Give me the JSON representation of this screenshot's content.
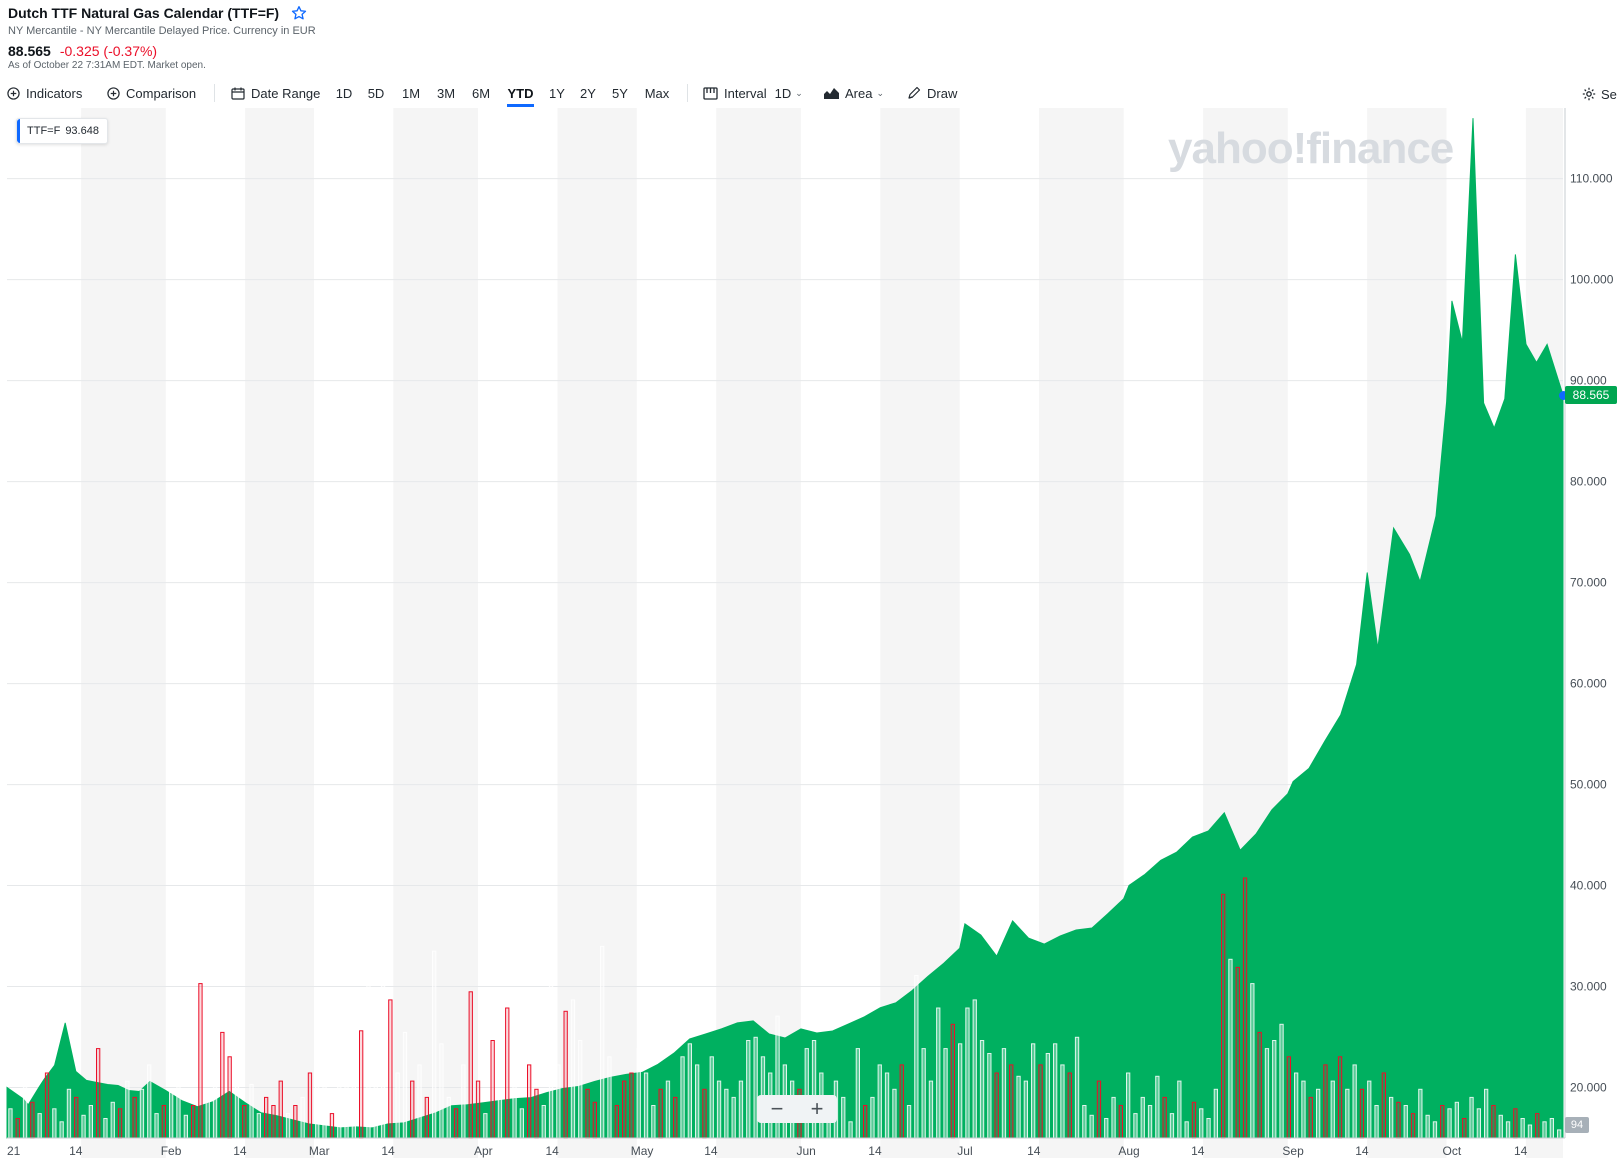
{
  "header": {
    "title": "Dutch TTF Natural Gas Calendar (TTF=F)",
    "subtitle": "NY Mercantile - NY Mercantile Delayed Price. Currency in EUR",
    "price": "88.565",
    "change": "-0.325 (-0.37%)",
    "as_of": "As of October 22 7:31AM EDT. Market open."
  },
  "toolbar": {
    "indicators": "Indicators",
    "comparison": "Comparison",
    "date_range": "Date Range",
    "ranges": [
      "1D",
      "5D",
      "1M",
      "3M",
      "6M",
      "YTD",
      "1Y",
      "2Y",
      "5Y",
      "Max"
    ],
    "active_range": "YTD",
    "interval_label": "Interval",
    "interval_value": "1D",
    "chart_type": "Area",
    "draw": "Draw",
    "settings": "Settings"
  },
  "legend": {
    "symbol": "TTF=F",
    "value": "93.648"
  },
  "watermark": "yahoo!finance",
  "current_price_flag": "88.565",
  "volume_flag": "94",
  "zoom": {
    "minus": "−",
    "plus": "+"
  },
  "colors": {
    "area": "#00b060",
    "volume_up": "#00a651",
    "volume_down": "#eb0f29",
    "accent": "#0f69ff",
    "negative": "#eb0f29",
    "band": "#f5f5f5"
  },
  "chart_data": {
    "type": "area",
    "title": "Dutch TTF Natural Gas Calendar (TTF=F)",
    "x_ticks": [
      "21",
      "14",
      "Feb",
      "14",
      "Mar",
      "14",
      "Apr",
      "14",
      "May",
      "14",
      "Jun",
      "14",
      "Jul",
      "14",
      "Aug",
      "14",
      "Sep",
      "14",
      "Oct",
      "14"
    ],
    "y_ticks": [
      "20.000",
      "30.000",
      "40.000",
      "50.000",
      "60.000",
      "70.000",
      "80.000",
      "90.000",
      "100.000",
      "110.000"
    ],
    "ylim": [
      15.0,
      117.0
    ],
    "x_range": [
      "2021-01-01",
      "2021-10-22"
    ],
    "series": [
      {
        "name": "TTF=F",
        "points": [
          [
            "2021-01-01",
            20.0
          ],
          [
            "2021-01-04",
            18.9
          ],
          [
            "2021-01-05",
            18.3
          ],
          [
            "2021-01-07",
            20.0
          ],
          [
            "2021-01-08",
            20.8
          ],
          [
            "2021-01-10",
            22.2
          ],
          [
            "2021-01-12",
            26.4
          ],
          [
            "2021-01-14",
            21.6
          ],
          [
            "2021-01-16",
            20.7
          ],
          [
            "2021-01-18",
            20.5
          ],
          [
            "2021-01-20",
            20.3
          ],
          [
            "2021-01-22",
            20.2
          ],
          [
            "2021-01-24",
            19.7
          ],
          [
            "2021-01-26",
            19.6
          ],
          [
            "2021-01-28",
            20.6
          ],
          [
            "2021-01-31",
            19.7
          ],
          [
            "2021-02-03",
            18.7
          ],
          [
            "2021-02-06",
            18.1
          ],
          [
            "2021-02-09",
            18.6
          ],
          [
            "2021-02-12",
            19.6
          ],
          [
            "2021-02-15",
            18.5
          ],
          [
            "2021-02-18",
            17.5
          ],
          [
            "2021-02-21",
            17.2
          ],
          [
            "2021-02-24",
            16.8
          ],
          [
            "2021-02-27",
            16.4
          ],
          [
            "2021-03-02",
            16.2
          ],
          [
            "2021-03-05",
            16.0
          ],
          [
            "2021-03-08",
            16.1
          ],
          [
            "2021-03-11",
            16.0
          ],
          [
            "2021-03-14",
            16.4
          ],
          [
            "2021-03-17",
            16.5
          ],
          [
            "2021-03-20",
            17.0
          ],
          [
            "2021-03-23",
            17.5
          ],
          [
            "2021-03-26",
            18.2
          ],
          [
            "2021-03-29",
            18.3
          ],
          [
            "2021-04-01",
            18.5
          ],
          [
            "2021-04-04",
            18.7
          ],
          [
            "2021-04-07",
            18.9
          ],
          [
            "2021-04-10",
            19.0
          ],
          [
            "2021-04-13",
            19.5
          ],
          [
            "2021-04-16",
            19.9
          ],
          [
            "2021-04-19",
            20.1
          ],
          [
            "2021-04-22",
            20.6
          ],
          [
            "2021-04-25",
            21.0
          ],
          [
            "2021-04-28",
            21.3
          ],
          [
            "2021-05-01",
            21.5
          ],
          [
            "2021-05-04",
            22.3
          ],
          [
            "2021-05-07",
            23.4
          ],
          [
            "2021-05-10",
            24.8
          ],
          [
            "2021-05-13",
            25.3
          ],
          [
            "2021-05-16",
            25.8
          ],
          [
            "2021-05-19",
            26.4
          ],
          [
            "2021-05-22",
            26.6
          ],
          [
            "2021-05-25",
            25.3
          ],
          [
            "2021-05-28",
            24.9
          ],
          [
            "2021-05-31",
            25.8
          ],
          [
            "2021-06-03",
            25.4
          ],
          [
            "2021-06-06",
            25.6
          ],
          [
            "2021-06-09",
            26.3
          ],
          [
            "2021-06-12",
            27.0
          ],
          [
            "2021-06-15",
            27.9
          ],
          [
            "2021-06-18",
            28.4
          ],
          [
            "2021-06-21",
            29.6
          ],
          [
            "2021-06-24",
            31.0
          ],
          [
            "2021-06-27",
            32.3
          ],
          [
            "2021-06-30",
            33.8
          ],
          [
            "2021-07-01",
            36.2
          ],
          [
            "2021-07-04",
            35.1
          ],
          [
            "2021-07-07",
            33.0
          ],
          [
            "2021-07-10",
            36.5
          ],
          [
            "2021-07-13",
            34.8
          ],
          [
            "2021-07-16",
            34.2
          ],
          [
            "2021-07-19",
            35.0
          ],
          [
            "2021-07-22",
            35.6
          ],
          [
            "2021-07-25",
            35.8
          ],
          [
            "2021-07-28",
            37.2
          ],
          [
            "2021-07-31",
            38.7
          ],
          [
            "2021-08-01",
            40.0
          ],
          [
            "2021-08-04",
            41.1
          ],
          [
            "2021-08-07",
            42.5
          ],
          [
            "2021-08-10",
            43.3
          ],
          [
            "2021-08-13",
            44.8
          ],
          [
            "2021-08-16",
            45.4
          ],
          [
            "2021-08-19",
            47.2
          ],
          [
            "2021-08-22",
            43.5
          ],
          [
            "2021-08-25",
            45.1
          ],
          [
            "2021-08-28",
            47.5
          ],
          [
            "2021-08-31",
            49.1
          ],
          [
            "2021-09-01",
            50.3
          ],
          [
            "2021-09-04",
            51.6
          ],
          [
            "2021-09-07",
            54.3
          ],
          [
            "2021-09-10",
            56.9
          ],
          [
            "2021-09-13",
            61.9
          ],
          [
            "2021-09-15",
            71.0
          ],
          [
            "2021-09-17",
            63.5
          ],
          [
            "2021-09-20",
            75.4
          ],
          [
            "2021-09-23",
            72.8
          ],
          [
            "2021-09-25",
            70.1
          ],
          [
            "2021-09-28",
            76.6
          ],
          [
            "2021-09-30",
            87.9
          ],
          [
            "2021-10-01",
            97.9
          ],
          [
            "2021-10-03",
            93.8
          ],
          [
            "2021-10-05",
            116.0
          ],
          [
            "2021-10-07",
            87.8
          ],
          [
            "2021-10-09",
            85.3
          ],
          [
            "2021-10-11",
            88.2
          ],
          [
            "2021-10-13",
            102.5
          ],
          [
            "2021-10-15",
            93.6
          ],
          [
            "2021-10-17",
            91.8
          ],
          [
            "2021-10-19",
            93.6
          ],
          [
            "2021-10-22",
            88.6
          ]
        ]
      }
    ],
    "volume": {
      "name": "Volume",
      "scale_max": 110,
      "bars": [
        [
          18,
          0
        ],
        [
          12,
          1
        ],
        [
          35,
          0
        ],
        [
          22,
          1
        ],
        [
          15,
          0
        ],
        [
          40,
          1
        ],
        [
          18,
          0
        ],
        [
          10,
          0
        ],
        [
          30,
          0
        ],
        [
          25,
          1
        ],
        [
          14,
          0
        ],
        [
          20,
          0
        ],
        [
          55,
          1
        ],
        [
          12,
          0
        ],
        [
          22,
          0
        ],
        [
          18,
          1
        ],
        [
          35,
          0
        ],
        [
          25,
          1
        ],
        [
          30,
          0
        ],
        [
          45,
          0
        ],
        [
          15,
          0
        ],
        [
          20,
          1
        ],
        [
          28,
          0
        ],
        [
          60,
          0
        ],
        [
          14,
          0
        ],
        [
          20,
          1
        ],
        [
          95,
          1
        ],
        [
          30,
          0
        ],
        [
          40,
          0
        ],
        [
          65,
          1
        ],
        [
          50,
          1
        ],
        [
          45,
          0
        ],
        [
          20,
          1
        ],
        [
          33,
          0
        ],
        [
          15,
          0
        ],
        [
          25,
          1
        ],
        [
          20,
          1
        ],
        [
          35,
          1
        ],
        [
          15,
          0
        ],
        [
          20,
          1
        ],
        [
          25,
          0
        ],
        [
          40,
          1
        ],
        [
          60,
          0
        ],
        [
          48,
          0
        ],
        [
          15,
          1
        ],
        [
          35,
          0
        ],
        [
          55,
          0
        ],
        [
          80,
          0
        ],
        [
          66,
          1
        ],
        [
          100,
          0
        ],
        [
          70,
          0
        ],
        [
          98,
          0
        ],
        [
          85,
          1
        ],
        [
          40,
          0
        ],
        [
          65,
          0
        ],
        [
          35,
          1
        ],
        [
          45,
          0
        ],
        [
          25,
          1
        ],
        [
          115,
          0
        ],
        [
          58,
          0
        ],
        [
          25,
          0
        ],
        [
          18,
          1
        ],
        [
          45,
          0
        ],
        [
          90,
          1
        ],
        [
          35,
          1
        ],
        [
          15,
          0
        ],
        [
          60,
          1
        ],
        [
          25,
          0
        ],
        [
          80,
          1
        ],
        [
          45,
          0
        ],
        [
          18,
          0
        ],
        [
          45,
          1
        ],
        [
          30,
          1
        ],
        [
          20,
          0
        ],
        [
          115,
          0
        ],
        [
          45,
          0
        ],
        [
          78,
          1
        ],
        [
          85,
          0
        ],
        [
          60,
          0
        ],
        [
          30,
          1
        ],
        [
          22,
          1
        ],
        [
          118,
          0
        ],
        [
          50,
          0
        ],
        [
          20,
          1
        ],
        [
          35,
          1
        ],
        [
          40,
          1
        ],
        [
          55,
          0
        ],
        [
          40,
          0
        ],
        [
          20,
          0
        ],
        [
          30,
          1
        ],
        [
          35,
          0
        ],
        [
          25,
          1
        ],
        [
          50,
          0
        ],
        [
          58,
          0
        ],
        [
          45,
          0
        ],
        [
          30,
          1
        ],
        [
          50,
          0
        ],
        [
          35,
          0
        ],
        [
          30,
          0
        ],
        [
          25,
          0
        ],
        [
          35,
          0
        ],
        [
          60,
          0
        ],
        [
          62,
          0
        ],
        [
          50,
          0
        ],
        [
          40,
          0
        ],
        [
          75,
          0
        ],
        [
          45,
          0
        ],
        [
          35,
          0
        ],
        [
          30,
          1
        ],
        [
          55,
          0
        ],
        [
          60,
          0
        ],
        [
          40,
          0
        ],
        [
          15,
          0
        ],
        [
          35,
          0
        ],
        [
          25,
          0
        ],
        [
          10,
          0
        ],
        [
          55,
          0
        ],
        [
          20,
          1
        ],
        [
          25,
          0
        ],
        [
          45,
          0
        ],
        [
          40,
          0
        ],
        [
          30,
          0
        ],
        [
          45,
          1
        ],
        [
          20,
          0
        ],
        [
          100,
          0
        ],
        [
          55,
          0
        ],
        [
          35,
          0
        ],
        [
          80,
          0
        ],
        [
          55,
          0
        ],
        [
          70,
          1
        ],
        [
          58,
          0
        ],
        [
          80,
          0
        ],
        [
          85,
          0
        ],
        [
          60,
          0
        ],
        [
          52,
          0
        ],
        [
          40,
          1
        ],
        [
          55,
          0
        ],
        [
          45,
          1
        ],
        [
          38,
          0
        ],
        [
          35,
          0
        ],
        [
          58,
          0
        ],
        [
          45,
          1
        ],
        [
          52,
          0
        ],
        [
          58,
          0
        ],
        [
          45,
          0
        ],
        [
          40,
          1
        ],
        [
          62,
          0
        ],
        [
          20,
          0
        ],
        [
          14,
          0
        ],
        [
          35,
          1
        ],
        [
          12,
          0
        ],
        [
          25,
          0
        ],
        [
          20,
          1
        ],
        [
          40,
          0
        ],
        [
          15,
          0
        ],
        [
          25,
          0
        ],
        [
          20,
          0
        ],
        [
          38,
          0
        ],
        [
          25,
          1
        ],
        [
          15,
          0
        ],
        [
          35,
          0
        ],
        [
          10,
          0
        ],
        [
          22,
          1
        ],
        [
          18,
          0
        ],
        [
          12,
          0
        ],
        [
          30,
          0
        ],
        [
          150,
          1
        ],
        [
          110,
          0
        ],
        [
          105,
          1
        ],
        [
          160,
          1
        ],
        [
          95,
          0
        ],
        [
          65,
          1
        ],
        [
          55,
          0
        ],
        [
          60,
          0
        ],
        [
          70,
          0
        ],
        [
          50,
          1
        ],
        [
          40,
          0
        ],
        [
          35,
          0
        ],
        [
          25,
          1
        ],
        [
          30,
          0
        ],
        [
          45,
          1
        ],
        [
          35,
          0
        ],
        [
          50,
          1
        ],
        [
          30,
          0
        ],
        [
          45,
          0
        ],
        [
          30,
          1
        ],
        [
          35,
          0
        ],
        [
          20,
          0
        ],
        [
          40,
          1
        ],
        [
          25,
          0
        ],
        [
          22,
          1
        ],
        [
          20,
          0
        ],
        [
          15,
          1
        ],
        [
          30,
          0
        ],
        [
          14,
          0
        ],
        [
          10,
          0
        ],
        [
          20,
          1
        ],
        [
          18,
          0
        ],
        [
          22,
          0
        ],
        [
          12,
          1
        ],
        [
          25,
          0
        ],
        [
          18,
          0
        ],
        [
          30,
          0
        ],
        [
          20,
          1
        ],
        [
          14,
          0
        ],
        [
          10,
          0
        ],
        [
          18,
          1
        ],
        [
          12,
          0
        ],
        [
          8,
          0
        ],
        [
          15,
          1
        ],
        [
          10,
          0
        ],
        [
          12,
          0
        ],
        [
          5,
          0
        ]
      ]
    },
    "legend_position": "top-left",
    "grid": true
  }
}
